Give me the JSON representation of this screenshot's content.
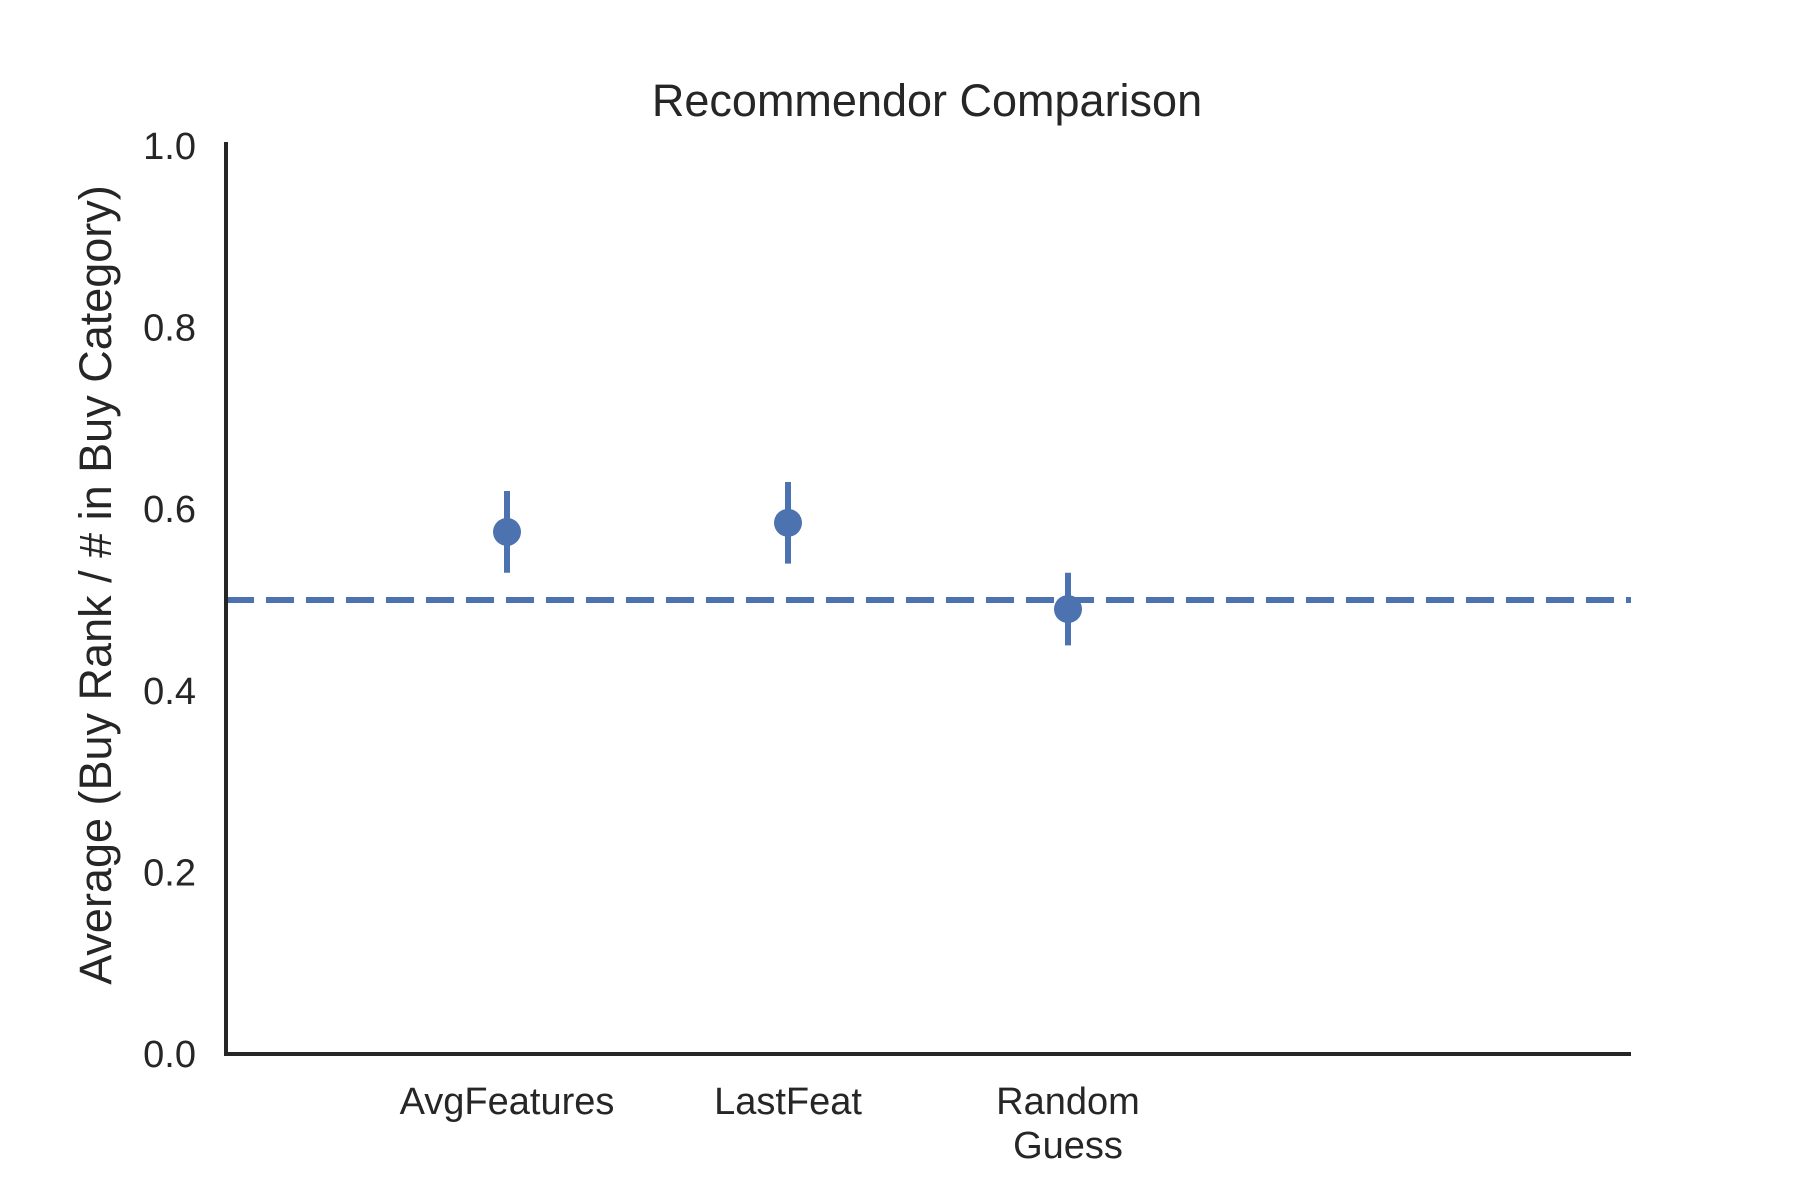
{
  "chart_data": {
    "type": "scatter",
    "title": "Recommendor Comparison",
    "xlabel": "",
    "ylabel": "Average (Buy Rank / # in Buy Category)",
    "categories": [
      "AvgFeatures",
      "LastFeat",
      "Random\nGuess"
    ],
    "values": [
      0.575,
      0.585,
      0.49
    ],
    "error_low": [
      0.53,
      0.54,
      0.45
    ],
    "error_high": [
      0.62,
      0.63,
      0.53
    ],
    "reference_line": 0.5,
    "ylim": [
      0.0,
      1.0
    ],
    "yticks": [
      "0.0",
      "0.2",
      "0.4",
      "0.6",
      "0.8",
      "1.0"
    ],
    "grid": false,
    "color": "#4C72B0"
  }
}
